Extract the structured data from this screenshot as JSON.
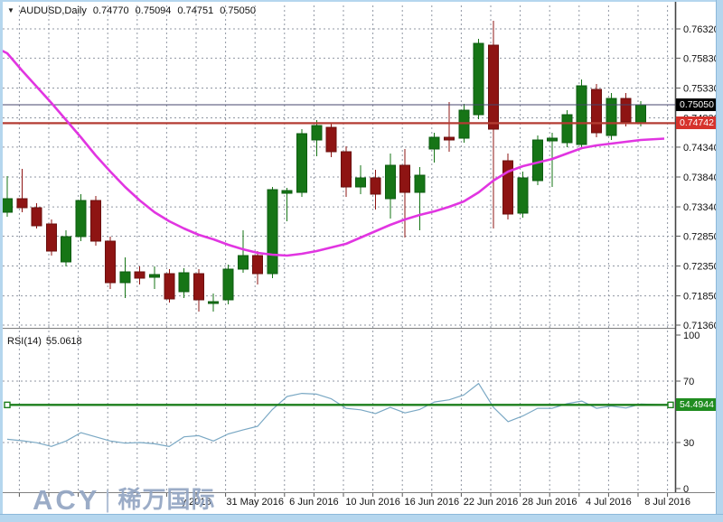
{
  "header": {
    "symbol": "AUDUSD,Daily",
    "open": "0.74770",
    "high": "0.75094",
    "low": "0.74751",
    "close": "0.75050"
  },
  "indicator": {
    "name": "RSI(14)",
    "value": "55.0618"
  },
  "tags": {
    "bid": "0.75050",
    "hline": "0.74742",
    "rsi_level": "54.4944"
  },
  "logo": {
    "brand": "ACY",
    "divider": "|",
    "cn": "稀万国际"
  },
  "colors": {
    "bull": "#167516",
    "bull_border": "#0c5c10",
    "bear": "#8e1413",
    "bear_border": "#6b0f0e",
    "ma": "#e135e1",
    "rsi": "#7aa8c4",
    "grid": "#9097a3",
    "axis_text": "#111111",
    "bid_line": "#46466e",
    "hline": "#b43c33",
    "rsi_level_line": "#1b7e1b",
    "separator": "#808080",
    "border": "#444444",
    "tag_bid_bg": "#000000",
    "tag_hline_bg": "#d6332c",
    "tag_rsi_bg": "#1f8c1f"
  },
  "chart_data": [
    {
      "type": "candlestick",
      "title": "AUDUSD Daily",
      "ylim": [
        0.7136,
        0.7632
      ],
      "y_ticks": [
        "0.76320",
        "0.75830",
        "0.75330",
        "0.74830",
        "0.74340",
        "0.73840",
        "0.73340",
        "0.72850",
        "0.72350",
        "0.71850",
        "0.71360"
      ],
      "x_labels": [
        "y 2016",
        "31 May 2016",
        "6 Jun 2016",
        "10 Jun 2016",
        "16 Jun 2016",
        "22 Jun 2016",
        "28 Jun 2016",
        "4 Jul 2016",
        "8 Jul 2016"
      ],
      "levels": {
        "bid": 0.7505,
        "hline": 0.74742
      },
      "candles": [
        [
          0.7325,
          0.73855,
          0.73175,
          0.73477
        ],
        [
          0.73477,
          0.73976,
          0.7325,
          0.73326
        ],
        [
          0.73326,
          0.73401,
          0.72978,
          0.73024
        ],
        [
          0.73054,
          0.73129,
          0.72524,
          0.726
        ],
        [
          0.72418,
          0.72948,
          0.72343,
          0.72842
        ],
        [
          0.72842,
          0.73552,
          0.72766,
          0.73447
        ],
        [
          0.73447,
          0.73522,
          0.72691,
          0.72766
        ],
        [
          0.72766,
          0.72842,
          0.71965,
          0.72071
        ],
        [
          0.72071,
          0.72494,
          0.71814,
          0.72252
        ],
        [
          0.72252,
          0.72343,
          0.7204,
          0.72146
        ],
        [
          0.72161,
          0.72343,
          0.71965,
          0.72207
        ],
        [
          0.72222,
          0.72298,
          0.71738,
          0.71799
        ],
        [
          0.7192,
          0.72313,
          0.71814,
          0.72237
        ],
        [
          0.72222,
          0.72298,
          0.71587,
          0.71784
        ],
        [
          0.71723,
          0.7189,
          0.71587,
          0.71753
        ],
        [
          0.71784,
          0.72373,
          0.71708,
          0.72298
        ],
        [
          0.72298,
          0.72948,
          0.72237,
          0.72524
        ],
        [
          0.72524,
          0.726,
          0.7204,
          0.72222
        ],
        [
          0.72222,
          0.73674,
          0.72146,
          0.73628
        ],
        [
          0.73568,
          0.73658,
          0.73099,
          0.73613
        ],
        [
          0.73583,
          0.74641,
          0.73507,
          0.74566
        ],
        [
          0.7446,
          0.74793,
          0.74188,
          0.74702
        ],
        [
          0.74672,
          0.74732,
          0.74173,
          0.74263
        ],
        [
          0.74263,
          0.74354,
          0.73507,
          0.73674
        ],
        [
          0.73674,
          0.74036,
          0.73553,
          0.73825
        ],
        [
          0.73825,
          0.73961,
          0.73296,
          0.73553
        ],
        [
          0.73477,
          0.74233,
          0.73145,
          0.74036
        ],
        [
          0.74036,
          0.74309,
          0.72827,
          0.73583
        ],
        [
          0.73583,
          0.74006,
          0.72948,
          0.7387
        ],
        [
          0.74309,
          0.74581,
          0.74082,
          0.74505
        ],
        [
          0.74505,
          0.75095,
          0.74263,
          0.7446
        ],
        [
          0.7449,
          0.75065,
          0.74415,
          0.74959
        ],
        [
          0.74883,
          0.76154,
          0.74808,
          0.76078
        ],
        [
          0.76048,
          0.76456,
          0.72978,
          0.74641
        ],
        [
          0.74112,
          0.74233,
          0.73129,
          0.7322
        ],
        [
          0.73235,
          0.73931,
          0.7316,
          0.73825
        ],
        [
          0.7378,
          0.74536,
          0.73704,
          0.7446
        ],
        [
          0.74445,
          0.74581,
          0.73674,
          0.7449
        ],
        [
          0.74415,
          0.74959,
          0.74339,
          0.74883
        ],
        [
          0.74384,
          0.75473,
          0.74309,
          0.75367
        ],
        [
          0.75307,
          0.75398,
          0.74505,
          0.74581
        ],
        [
          0.74536,
          0.75246,
          0.7446,
          0.75156
        ],
        [
          0.75156,
          0.75246,
          0.74687,
          0.74763
        ],
        [
          0.74732,
          0.7511,
          0.74687,
          0.7505
        ]
      ],
      "ma_period_series": [
        0.75912,
        0.75624,
        0.75352,
        0.7508,
        0.74793,
        0.74505,
        0.74203,
        0.73931,
        0.73674,
        0.73447,
        0.7325,
        0.73099,
        0.72978,
        0.72872,
        0.72797,
        0.72706,
        0.7263,
        0.7257,
        0.7254,
        0.72524,
        0.72555,
        0.726,
        0.7266,
        0.72721,
        0.72827,
        0.72933,
        0.73039,
        0.73129,
        0.73205,
        0.73265,
        0.73341,
        0.73432,
        0.73583,
        0.7378,
        0.73931,
        0.74021,
        0.74082,
        0.74142,
        0.74233,
        0.74324,
        0.74369,
        0.74399,
        0.7443,
        0.7446
      ]
    },
    {
      "type": "line",
      "name": "RSI(14)",
      "ylim": [
        0,
        100
      ],
      "y_ticks": [
        "100",
        "70",
        "30",
        "0"
      ],
      "level": 54.4944,
      "values": [
        32.1,
        31.2,
        29.9,
        27.5,
        31.0,
        36.4,
        33.7,
        31.0,
        29.6,
        30.0,
        29.2,
        27.4,
        33.7,
        34.5,
        31.0,
        35.6,
        38.2,
        40.6,
        51.5,
        60.0,
        62.0,
        61.5,
        58.5,
        52.3,
        51.3,
        48.9,
        52.9,
        49.3,
        51.5,
        56.4,
        57.8,
        61.0,
        68.5,
        53.0,
        43.6,
        47.3,
        52.3,
        52.3,
        55.3,
        57.0,
        52.3,
        53.7,
        52.5,
        55.06
      ]
    }
  ]
}
